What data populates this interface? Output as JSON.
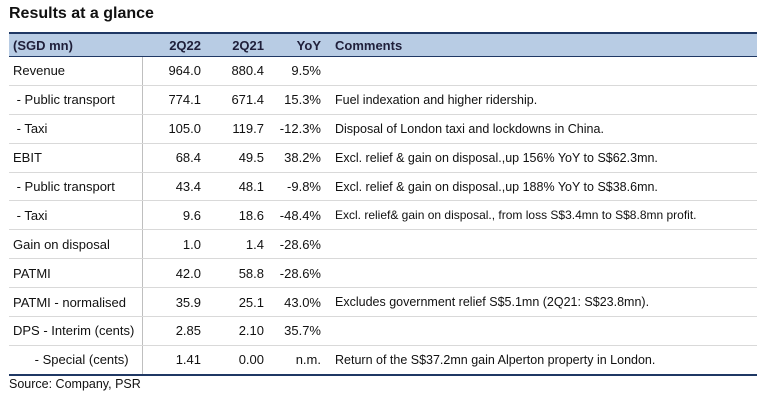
{
  "title": "Results at a glance",
  "columns": [
    "(SGD mn)",
    "2Q22",
    "2Q21",
    "YoY",
    "Comments"
  ],
  "rows": [
    {
      "label": "Revenue",
      "q22": "964.0",
      "q21": "880.4",
      "yoy": "9.5%",
      "comment": ""
    },
    {
      "label": " - Public transport",
      "q22": "774.1",
      "q21": "671.4",
      "yoy": "15.3%",
      "comment": "Fuel indexation and higher ridership."
    },
    {
      "label": " - Taxi",
      "q22": "105.0",
      "q21": "119.7",
      "yoy": "-12.3%",
      "comment": "Disposal of London taxi and lockdowns in China."
    },
    {
      "label": "EBIT",
      "q22": "68.4",
      "q21": "49.5",
      "yoy": "38.2%",
      "comment": "Excl. relief & gain on disposal.,up 156% YoY to S$62.3mn."
    },
    {
      "label": " - Public transport",
      "q22": "43.4",
      "q21": "48.1",
      "yoy": "-9.8%",
      "comment": "Excl. relief & gain on disposal.,up 188% YoY to S$38.6mn."
    },
    {
      "label": " - Taxi",
      "q22": "9.6",
      "q21": "18.6",
      "yoy": "-48.4%",
      "comment": "Excl. relief& gain on disposal., from loss S$3.4mn to S$8.8mn profit."
    },
    {
      "label": "Gain on disposal",
      "q22": "1.0",
      "q21": "1.4",
      "yoy": "-28.6%",
      "comment": ""
    },
    {
      "label": "PATMI",
      "q22": "42.0",
      "q21": "58.8",
      "yoy": "-28.6%",
      "comment": ""
    },
    {
      "label": "PATMI - normalised",
      "q22": "35.9",
      "q21": "25.1",
      "yoy": "43.0%",
      "comment": "Excludes government relief S$5.1mn (2Q21: S$23.8mn)."
    },
    {
      "label": "DPS - Interim (cents)",
      "q22": "2.85",
      "q21": "2.10",
      "yoy": "35.7%",
      "comment": ""
    },
    {
      "label": "      - Special (cents)",
      "q22": "1.41",
      "q21": "0.00",
      "yoy": "n.m.",
      "comment": "Return of the S$37.2mn gain Alperton property in London."
    }
  ],
  "source": "Source: Company, PSR",
  "colors": {
    "header_bg": "#b8cce4",
    "rule": "#1f3864"
  }
}
